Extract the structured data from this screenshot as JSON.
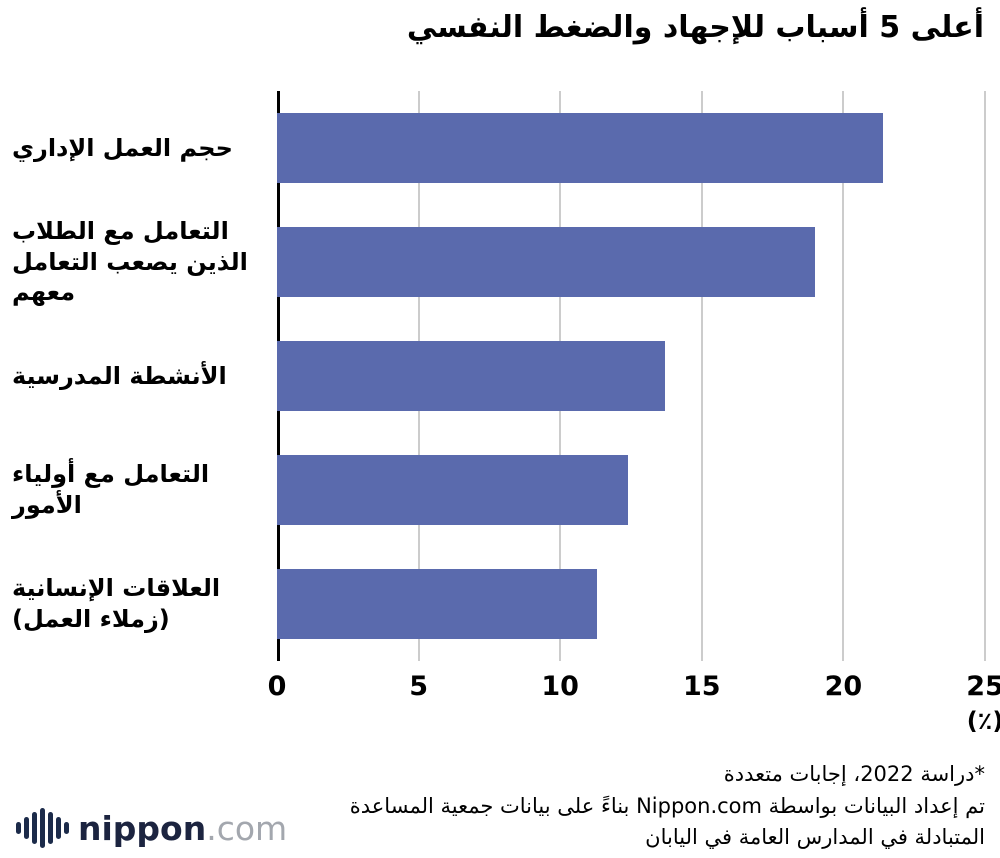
{
  "title": "أعلى 5 أسباب للإجهاد والضغط النفسي",
  "chart_data": {
    "type": "bar",
    "orientation": "horizontal",
    "title": "أعلى 5 أسباب للإجهاد والضغط النفسي",
    "categories": [
      "حجم العمل الإداري",
      "التعامل مع الطلاب الذين يصعب التعامل معهم",
      "الأنشطة المدرسية",
      "التعامل مع أولياء الأمور",
      "العلاقات الإنسانية (زملاء العمل)"
    ],
    "values": [
      21.4,
      19.0,
      13.7,
      12.4,
      11.3
    ],
    "xlim": [
      0,
      25
    ],
    "xticks": [
      0,
      5,
      10,
      15,
      20,
      25
    ],
    "xlabel": "(٪)",
    "bar_color": "#5A6AAD",
    "grid": true,
    "gridline_color": "#cccccc"
  },
  "footnotes": {
    "line1": "*دراسة 2022، إجابات متعددة",
    "line2": "تم إعداد البيانات بواسطة Nippon.com بناءً على بيانات جمعية المساعدة",
    "line3": "المتبادلة في المدارس العامة  في اليابان"
  },
  "logo": {
    "name": "nippon",
    "suffix": ".com",
    "icon": "soundwave-bars-icon",
    "color": "#1c2440",
    "suffix_color": "#a3a7ae"
  }
}
